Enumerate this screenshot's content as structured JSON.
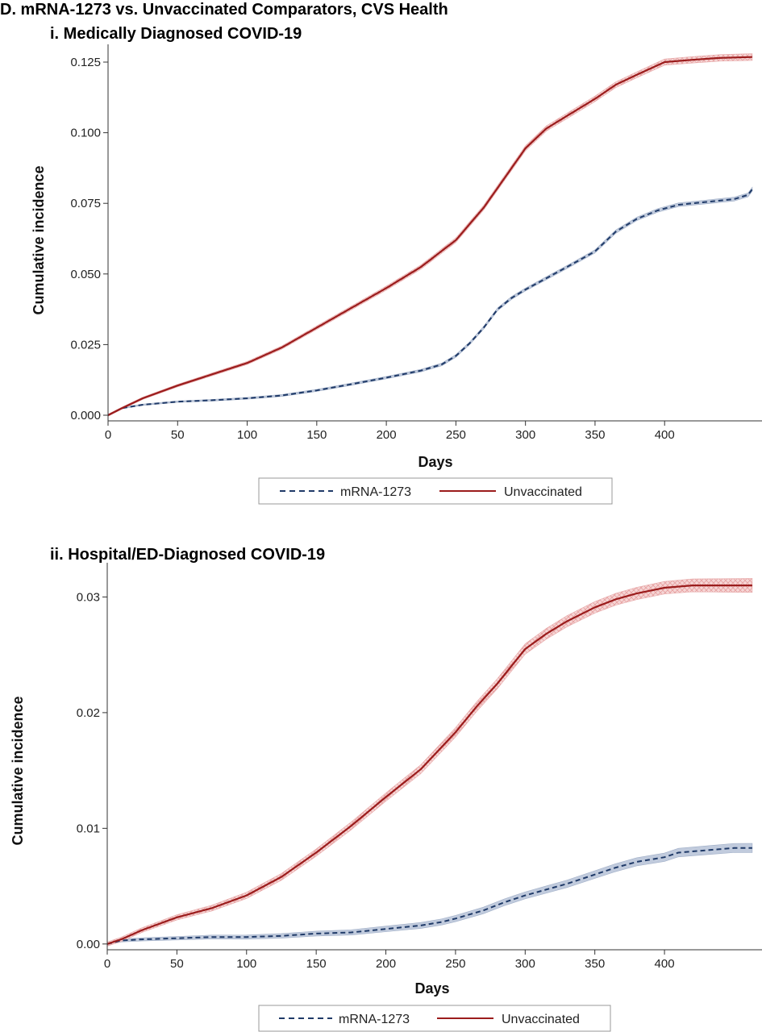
{
  "figure_title": "D. mRNA-1273 vs. Unvaccinated Comparators, CVS Health",
  "colors": {
    "vaccinated_line": "#1f3a68",
    "vaccinated_band": "#b7c3d8",
    "unvaccinated_line": "#9b1c1c",
    "unvaccinated_band": "#f2c4c4",
    "axis": "#333333"
  },
  "chart_data": [
    {
      "type": "line",
      "title": "i. Medically Diagnosed COVID-19",
      "xlabel": "Days",
      "ylabel": "Cumulative incidence",
      "xlim": [
        0,
        470
      ],
      "ylim": [
        -0.002,
        0.129
      ],
      "x_ticks": [
        0,
        50,
        100,
        150,
        200,
        250,
        300,
        350,
        400
      ],
      "y_ticks": [
        0.0,
        0.025,
        0.05,
        0.075,
        0.1,
        0.125
      ],
      "y_tick_labels": [
        "0.000",
        "0.025",
        "0.050",
        "0.075",
        "0.100",
        "0.125"
      ],
      "legend": {
        "position": "bottom",
        "entries": [
          "mRNA-1273",
          "Unvaccinated"
        ]
      },
      "series": [
        {
          "name": "mRNA-1273",
          "style": "dashed",
          "band_halfwidth": 0.0007,
          "points": [
            [
              0,
              0.0
            ],
            [
              10,
              0.0025
            ],
            [
              25,
              0.0037
            ],
            [
              50,
              0.0048
            ],
            [
              75,
              0.0053
            ],
            [
              100,
              0.006
            ],
            [
              125,
              0.007
            ],
            [
              150,
              0.0088
            ],
            [
              175,
              0.011
            ],
            [
              200,
              0.0133
            ],
            [
              225,
              0.0158
            ],
            [
              240,
              0.018
            ],
            [
              250,
              0.021
            ],
            [
              260,
              0.0255
            ],
            [
              270,
              0.031
            ],
            [
              280,
              0.0375
            ],
            [
              290,
              0.0415
            ],
            [
              300,
              0.0445
            ],
            [
              315,
              0.0485
            ],
            [
              330,
              0.0525
            ],
            [
              350,
              0.058
            ],
            [
              365,
              0.065
            ],
            [
              380,
              0.0695
            ],
            [
              395,
              0.0725
            ],
            [
              410,
              0.0745
            ],
            [
              430,
              0.0755
            ],
            [
              450,
              0.0765
            ],
            [
              460,
              0.078
            ],
            [
              463,
              0.08
            ]
          ]
        },
        {
          "name": "Unvaccinated",
          "style": "solid",
          "band_halfwidth": 0.0012,
          "points": [
            [
              0,
              0.0
            ],
            [
              10,
              0.0025
            ],
            [
              25,
              0.006
            ],
            [
              50,
              0.0105
            ],
            [
              75,
              0.0145
            ],
            [
              100,
              0.0185
            ],
            [
              125,
              0.024
            ],
            [
              150,
              0.031
            ],
            [
              175,
              0.038
            ],
            [
              200,
              0.045
            ],
            [
              225,
              0.0525
            ],
            [
              250,
              0.062
            ],
            [
              270,
              0.0735
            ],
            [
              285,
              0.084
            ],
            [
              300,
              0.0945
            ],
            [
              315,
              0.1015
            ],
            [
              330,
              0.106
            ],
            [
              350,
              0.112
            ],
            [
              365,
              0.117
            ],
            [
              380,
              0.1205
            ],
            [
              400,
              0.125
            ],
            [
              420,
              0.1258
            ],
            [
              440,
              0.1265
            ],
            [
              463,
              0.1268
            ]
          ]
        }
      ]
    },
    {
      "type": "line",
      "title": "ii. Hospital/ED-Diagnosed COVID-19",
      "xlabel": "Days",
      "ylabel": "Cumulative incidence",
      "xlim": [
        0,
        470
      ],
      "ylim": [
        -0.0005,
        0.0324
      ],
      "x_ticks": [
        0,
        50,
        100,
        150,
        200,
        250,
        300,
        350,
        400
      ],
      "y_ticks": [
        0.0,
        0.01,
        0.02,
        0.03
      ],
      "y_tick_labels": [
        "0.00",
        "0.01",
        "0.02",
        "0.03"
      ],
      "legend": {
        "position": "bottom",
        "entries": [
          "mRNA-1273",
          "Unvaccinated"
        ]
      },
      "series": [
        {
          "name": "mRNA-1273",
          "style": "dashed",
          "band_halfwidth": 0.0004,
          "points": [
            [
              0,
              0.0
            ],
            [
              10,
              0.0003
            ],
            [
              25,
              0.0004
            ],
            [
              50,
              0.0005
            ],
            [
              75,
              0.0006
            ],
            [
              100,
              0.0006
            ],
            [
              125,
              0.0007
            ],
            [
              150,
              0.0009
            ],
            [
              175,
              0.001
            ],
            [
              200,
              0.0013
            ],
            [
              225,
              0.0016
            ],
            [
              240,
              0.0019
            ],
            [
              250,
              0.0022
            ],
            [
              270,
              0.0029
            ],
            [
              285,
              0.0036
            ],
            [
              300,
              0.0042
            ],
            [
              315,
              0.0047
            ],
            [
              330,
              0.0052
            ],
            [
              350,
              0.006
            ],
            [
              365,
              0.0066
            ],
            [
              380,
              0.0071
            ],
            [
              400,
              0.0075
            ],
            [
              410,
              0.0079
            ],
            [
              430,
              0.0081
            ],
            [
              450,
              0.0083
            ],
            [
              463,
              0.0083
            ]
          ]
        },
        {
          "name": "Unvaccinated",
          "style": "solid",
          "band_halfwidth": 0.0006,
          "points": [
            [
              0,
              0.0
            ],
            [
              10,
              0.0004
            ],
            [
              25,
              0.0012
            ],
            [
              50,
              0.0023
            ],
            [
              75,
              0.0031
            ],
            [
              100,
              0.0042
            ],
            [
              125,
              0.0058
            ],
            [
              150,
              0.0079
            ],
            [
              175,
              0.0102
            ],
            [
              200,
              0.0127
            ],
            [
              225,
              0.0151
            ],
            [
              250,
              0.0183
            ],
            [
              265,
              0.0205
            ],
            [
              280,
              0.0225
            ],
            [
              290,
              0.024
            ],
            [
              300,
              0.0255
            ],
            [
              315,
              0.0268
            ],
            [
              330,
              0.0279
            ],
            [
              350,
              0.0291
            ],
            [
              365,
              0.0298
            ],
            [
              380,
              0.0303
            ],
            [
              400,
              0.0308
            ],
            [
              420,
              0.031
            ],
            [
              440,
              0.031
            ],
            [
              463,
              0.031
            ]
          ]
        }
      ]
    }
  ]
}
